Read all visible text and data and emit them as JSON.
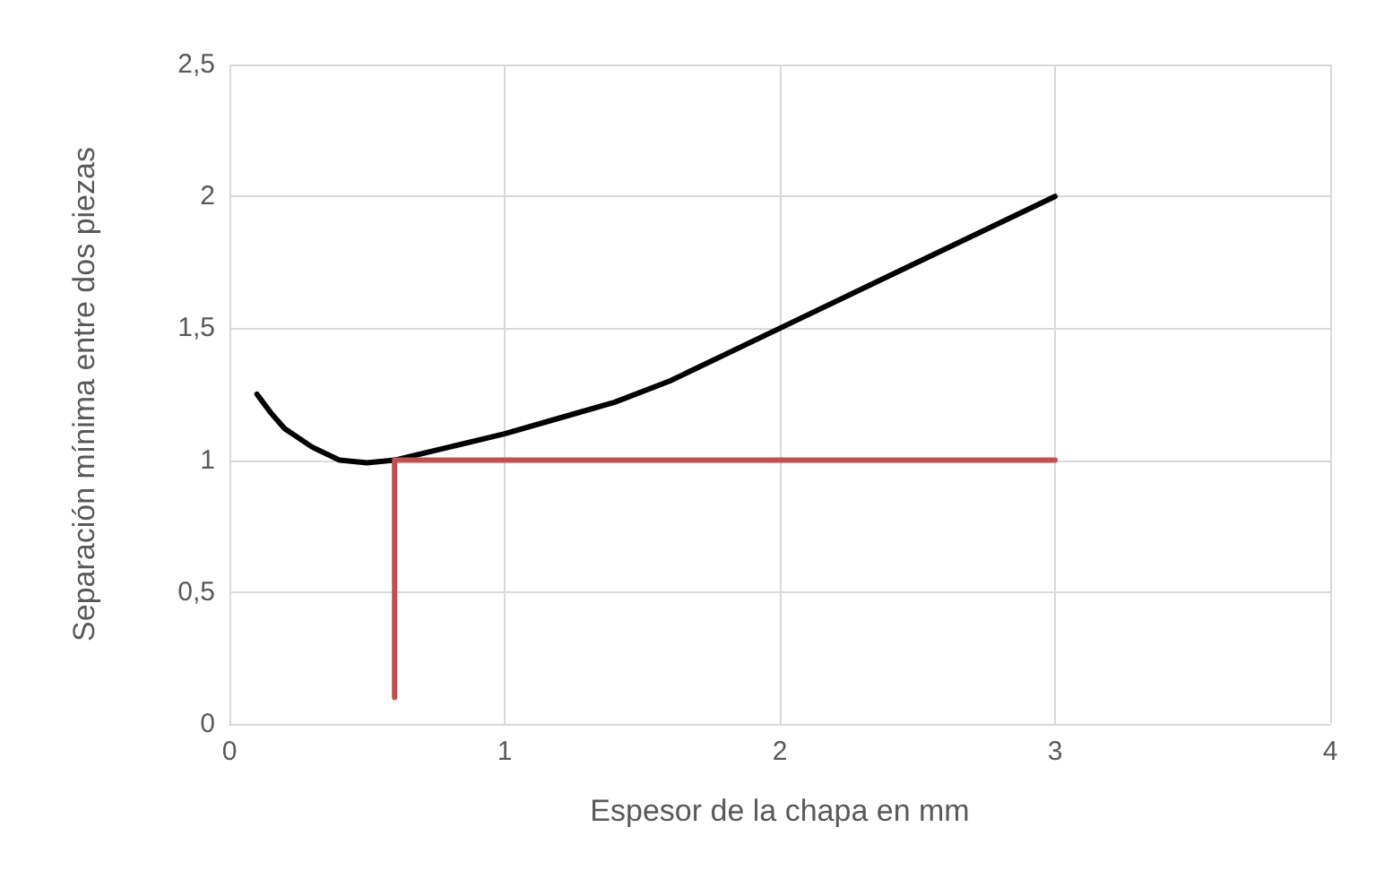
{
  "chart_data": {
    "type": "line",
    "xlabel": "Espesor de la chapa en mm",
    "ylabel": "Separación mínima entre dos piezas",
    "xlim": [
      0,
      4
    ],
    "xticks": [
      0,
      1,
      2,
      3,
      4
    ],
    "ylim": [
      0,
      2.5
    ],
    "yticks": [
      {
        "value": 0,
        "label": "0"
      },
      {
        "value": 0.5,
        "label": "0,5"
      },
      {
        "value": 1,
        "label": "1"
      },
      {
        "value": 1.5,
        "label": "1,5"
      },
      {
        "value": 2,
        "label": "2"
      },
      {
        "value": 2.5,
        "label": "2,5"
      }
    ],
    "grid": true,
    "marker": "none",
    "line_style": "solid",
    "series": [
      {
        "color": "#000000",
        "x": [
          0.1,
          0.15,
          0.2,
          0.3,
          0.4,
          0.5,
          0.6,
          0.8,
          1,
          1.2,
          1.4,
          1.6,
          2,
          2.5,
          3
        ],
        "values": [
          1.25,
          1.18,
          1.12,
          1.05,
          1.0,
          0.99,
          1.0,
          1.05,
          1.1,
          1.16,
          1.22,
          1.3,
          1.5,
          1.75,
          2
        ]
      },
      {
        "color": "#c0504d",
        "x": [
          0.6,
          0.6,
          3
        ],
        "values": [
          0.1,
          1,
          1
        ]
      }
    ]
  }
}
